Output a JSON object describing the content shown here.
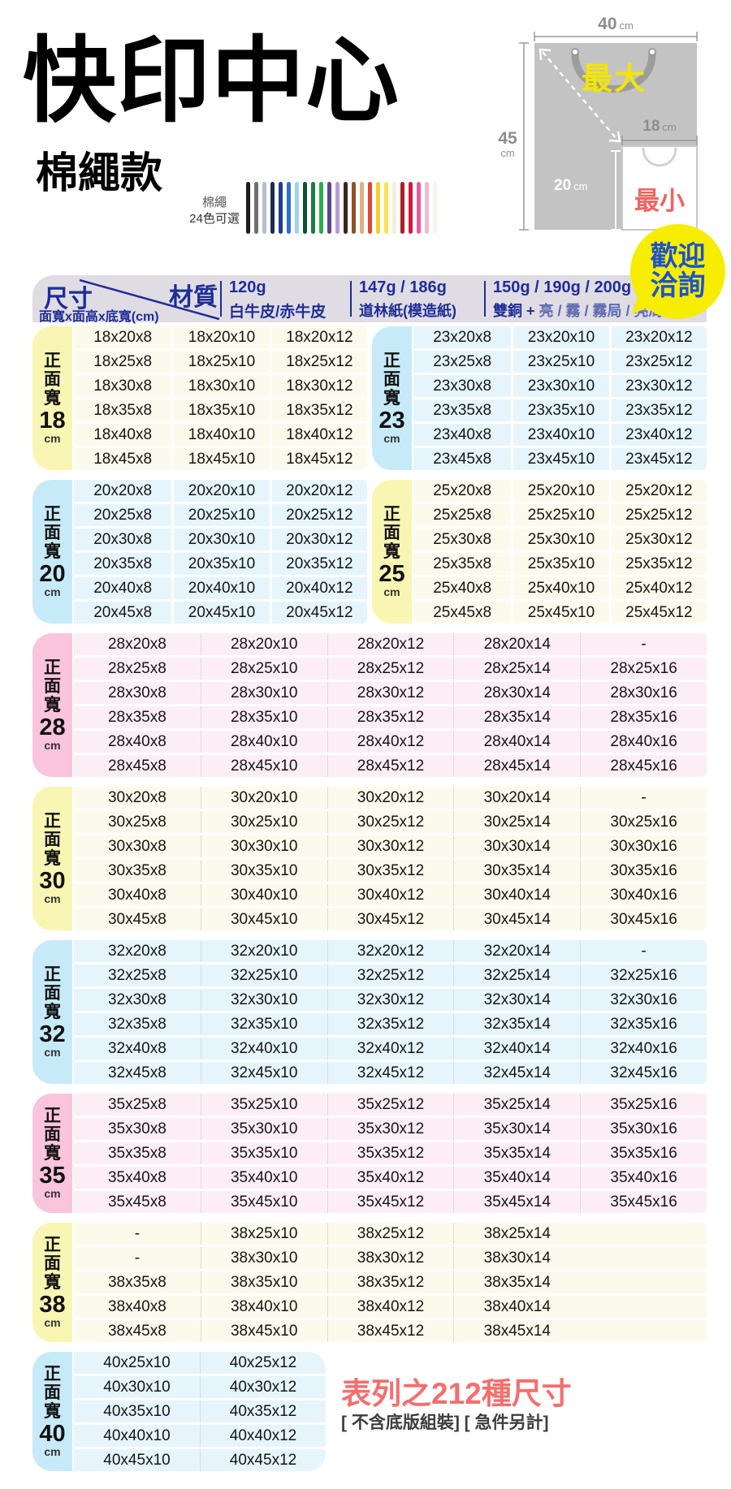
{
  "title": "快印中心",
  "subtitle": "棉繩款",
  "rope": {
    "label_line1": "棉繩",
    "label_line2": "24色可選",
    "colors": [
      "#1c1c1c",
      "#6e6e6e",
      "#b7bec4",
      "#1d2b4e",
      "#203f93",
      "#2f6fd6",
      "#9ed1f1",
      "#0f5038",
      "#1e7c41",
      "#2daa4d",
      "#5d4597",
      "#b89cd9",
      "#3a241b",
      "#8c5127",
      "#dab286",
      "#e2472f",
      "#f2cf2b",
      "#f8e452",
      "#f5efda",
      "#a8202e",
      "#d4173a",
      "#e85a9b",
      "#f3b9d3",
      "#f8f5ef"
    ]
  },
  "diagram": {
    "top_dim": {
      "value": "40",
      "unit": "cm"
    },
    "left_dim": {
      "value": "45",
      "unit": "cm"
    },
    "small_top_dim": {
      "value": "18",
      "unit": "cm"
    },
    "small_left_dim": {
      "value": "20",
      "unit": "cm"
    },
    "max_label": "最大",
    "min_label": "最小",
    "big_bag_color": "#c3c3c3",
    "max_color": "#f3e600",
    "min_color": "#f2635f"
  },
  "badge": {
    "line1": "歡迎",
    "line2": "洽詢",
    "bg": "#f6ed00",
    "text_color": "#1c52cf"
  },
  "spec_header": {
    "size_label": "尺寸",
    "material_label": "材質",
    "size_note": "面寬x面高x底寬(cm)",
    "band_bg": "#e0dce3",
    "text_color": "#1e2d97",
    "columns": [
      {
        "weight": "120g",
        "material": "白牛皮/赤牛皮"
      },
      {
        "weight": "147g / 186g",
        "material": "道林紙(模造紙)"
      },
      {
        "weight": "150g / 190g / 200g / 250g",
        "material_prefix": "雙銅 + ",
        "material_options": "亮 / 霧 / 霧局 / 亮局"
      }
    ]
  },
  "section_label": {
    "prefix_chars": [
      "正",
      "面",
      "寬"
    ],
    "unit": "cm"
  },
  "themes": {
    "yellow": {
      "label_bg": "#f8f6b2",
      "cell_bg": "#fbfaec"
    },
    "blue": {
      "label_bg": "#c7eaf8",
      "cell_bg": "#e6f5fb"
    },
    "pink": {
      "label_bg": "#f9c4dc",
      "cell_bg": "#fdeef5"
    }
  },
  "table_groups": [
    {
      "type": "pair",
      "sections": [
        {
          "number": "18",
          "theme": "yellow",
          "grid_cols": 3,
          "rows": [
            [
              "18x20x8",
              "18x20x10",
              "18x20x12"
            ],
            [
              "18x25x8",
              "18x25x10",
              "18x25x12"
            ],
            [
              "18x30x8",
              "18x30x10",
              "18x30x12"
            ],
            [
              "18x35x8",
              "18x35x10",
              "18x35x12"
            ],
            [
              "18x40x8",
              "18x40x10",
              "18x40x12"
            ],
            [
              "18x45x8",
              "18x45x10",
              "18x45x12"
            ]
          ]
        },
        {
          "number": "23",
          "theme": "blue",
          "grid_cols": 3,
          "rows": [
            [
              "23x20x8",
              "23x20x10",
              "23x20x12"
            ],
            [
              "23x25x8",
              "23x25x10",
              "23x25x12"
            ],
            [
              "23x30x8",
              "23x30x10",
              "23x30x12"
            ],
            [
              "23x35x8",
              "23x35x10",
              "23x35x12"
            ],
            [
              "23x40x8",
              "23x40x10",
              "23x40x12"
            ],
            [
              "23x45x8",
              "23x45x10",
              "23x45x12"
            ]
          ]
        }
      ]
    },
    {
      "type": "pair",
      "sections": [
        {
          "number": "20",
          "theme": "blue",
          "grid_cols": 3,
          "rows": [
            [
              "20x20x8",
              "20x20x10",
              "20x20x12"
            ],
            [
              "20x25x8",
              "20x25x10",
              "20x25x12"
            ],
            [
              "20x30x8",
              "20x30x10",
              "20x30x12"
            ],
            [
              "20x35x8",
              "20x35x10",
              "20x35x12"
            ],
            [
              "20x40x8",
              "20x40x10",
              "20x40x12"
            ],
            [
              "20x45x8",
              "20x45x10",
              "20x45x12"
            ]
          ]
        },
        {
          "number": "25",
          "theme": "yellow",
          "grid_cols": 3,
          "rows": [
            [
              "25x20x8",
              "25x20x10",
              "25x20x12"
            ],
            [
              "25x25x8",
              "25x25x10",
              "25x25x12"
            ],
            [
              "25x30x8",
              "25x30x10",
              "25x30x12"
            ],
            [
              "25x35x8",
              "25x35x10",
              "25x35x12"
            ],
            [
              "25x40x8",
              "25x40x10",
              "25x40x12"
            ],
            [
              "25x45x8",
              "25x45x10",
              "25x45x12"
            ]
          ]
        }
      ]
    },
    {
      "type": "full",
      "sections": [
        {
          "number": "28",
          "theme": "pink",
          "grid_cols": 5,
          "rows": [
            [
              "28x20x8",
              "28x20x10",
              "28x20x12",
              "28x20x14",
              "-"
            ],
            [
              "28x25x8",
              "28x25x10",
              "28x25x12",
              "28x25x14",
              "28x25x16"
            ],
            [
              "28x30x8",
              "28x30x10",
              "28x30x12",
              "28x30x14",
              "28x30x16"
            ],
            [
              "28x35x8",
              "28x35x10",
              "28x35x12",
              "28x35x14",
              "28x35x16"
            ],
            [
              "28x40x8",
              "28x40x10",
              "28x40x12",
              "28x40x14",
              "28x40x16"
            ],
            [
              "28x45x8",
              "28x45x10",
              "28x45x12",
              "28x45x14",
              "28x45x16"
            ]
          ]
        }
      ]
    },
    {
      "type": "full",
      "sections": [
        {
          "number": "30",
          "theme": "yellow",
          "grid_cols": 5,
          "rows": [
            [
              "30x20x8",
              "30x20x10",
              "30x20x12",
              "30x20x14",
              "-"
            ],
            [
              "30x25x8",
              "30x25x10",
              "30x25x12",
              "30x25x14",
              "30x25x16"
            ],
            [
              "30x30x8",
              "30x30x10",
              "30x30x12",
              "30x30x14",
              "30x30x16"
            ],
            [
              "30x35x8",
              "30x35x10",
              "30x35x12",
              "30x35x14",
              "30x35x16"
            ],
            [
              "30x40x8",
              "30x40x10",
              "30x40x12",
              "30x40x14",
              "30x40x16"
            ],
            [
              "30x45x8",
              "30x45x10",
              "30x45x12",
              "30x45x14",
              "30x45x16"
            ]
          ]
        }
      ]
    },
    {
      "type": "full",
      "sections": [
        {
          "number": "32",
          "theme": "blue",
          "grid_cols": 5,
          "rows": [
            [
              "32x20x8",
              "32x20x10",
              "32x20x12",
              "32x20x14",
              "-"
            ],
            [
              "32x25x8",
              "32x25x10",
              "32x25x12",
              "32x25x14",
              "32x25x16"
            ],
            [
              "32x30x8",
              "32x30x10",
              "32x30x12",
              "32x30x14",
              "32x30x16"
            ],
            [
              "32x35x8",
              "32x35x10",
              "32x35x12",
              "32x35x14",
              "32x35x16"
            ],
            [
              "32x40x8",
              "32x40x10",
              "32x40x12",
              "32x40x14",
              "32x40x16"
            ],
            [
              "32x45x8",
              "32x45x10",
              "32x45x12",
              "32x45x14",
              "32x45x16"
            ]
          ]
        }
      ]
    },
    {
      "type": "full",
      "sections": [
        {
          "number": "35",
          "theme": "pink",
          "grid_cols": 5,
          "rows": [
            [
              "35x25x8",
              "35x25x10",
              "35x25x12",
              "35x25x14",
              "35x25x16"
            ],
            [
              "35x30x8",
              "35x30x10",
              "35x30x12",
              "35x30x14",
              "35x30x16"
            ],
            [
              "35x35x8",
              "35x35x10",
              "35x35x12",
              "35x35x14",
              "35x35x16"
            ],
            [
              "35x40x8",
              "35x40x10",
              "35x40x12",
              "35x40x14",
              "35x40x16"
            ],
            [
              "35x45x8",
              "35x45x10",
              "35x45x12",
              "35x45x14",
              "35x45x16"
            ]
          ]
        }
      ]
    },
    {
      "type": "full",
      "sections": [
        {
          "number": "38",
          "theme": "yellow",
          "grid_cols": 5,
          "rows": [
            [
              "-",
              "38x25x10",
              "38x25x12",
              "38x25x14"
            ],
            [
              "-",
              "38x30x10",
              "38x30x12",
              "38x30x14"
            ],
            [
              "38x35x8",
              "38x35x10",
              "38x35x12",
              "38x35x14"
            ],
            [
              "38x40x8",
              "38x40x10",
              "38x40x12",
              "38x40x14"
            ],
            [
              "38x45x8",
              "38x45x10",
              "38x45x12",
              "38x45x14"
            ]
          ]
        }
      ]
    },
    {
      "type": "full",
      "sections": [
        {
          "number": "40",
          "theme": "blue",
          "narrow": true,
          "grid_cols": 2,
          "rows": [
            [
              "40x25x10",
              "40x25x12"
            ],
            [
              "40x30x10",
              "40x30x12"
            ],
            [
              "40x35x10",
              "40x35x12"
            ],
            [
              "40x40x10",
              "40x40x12"
            ],
            [
              "40x45x10",
              "40x45x12"
            ]
          ]
        }
      ]
    }
  ],
  "footer": {
    "highlight": "表列之212種尺寸",
    "note": "[ 不含底版組裝]  [ 急件另計]",
    "highlight_color": "#f56e6e"
  }
}
